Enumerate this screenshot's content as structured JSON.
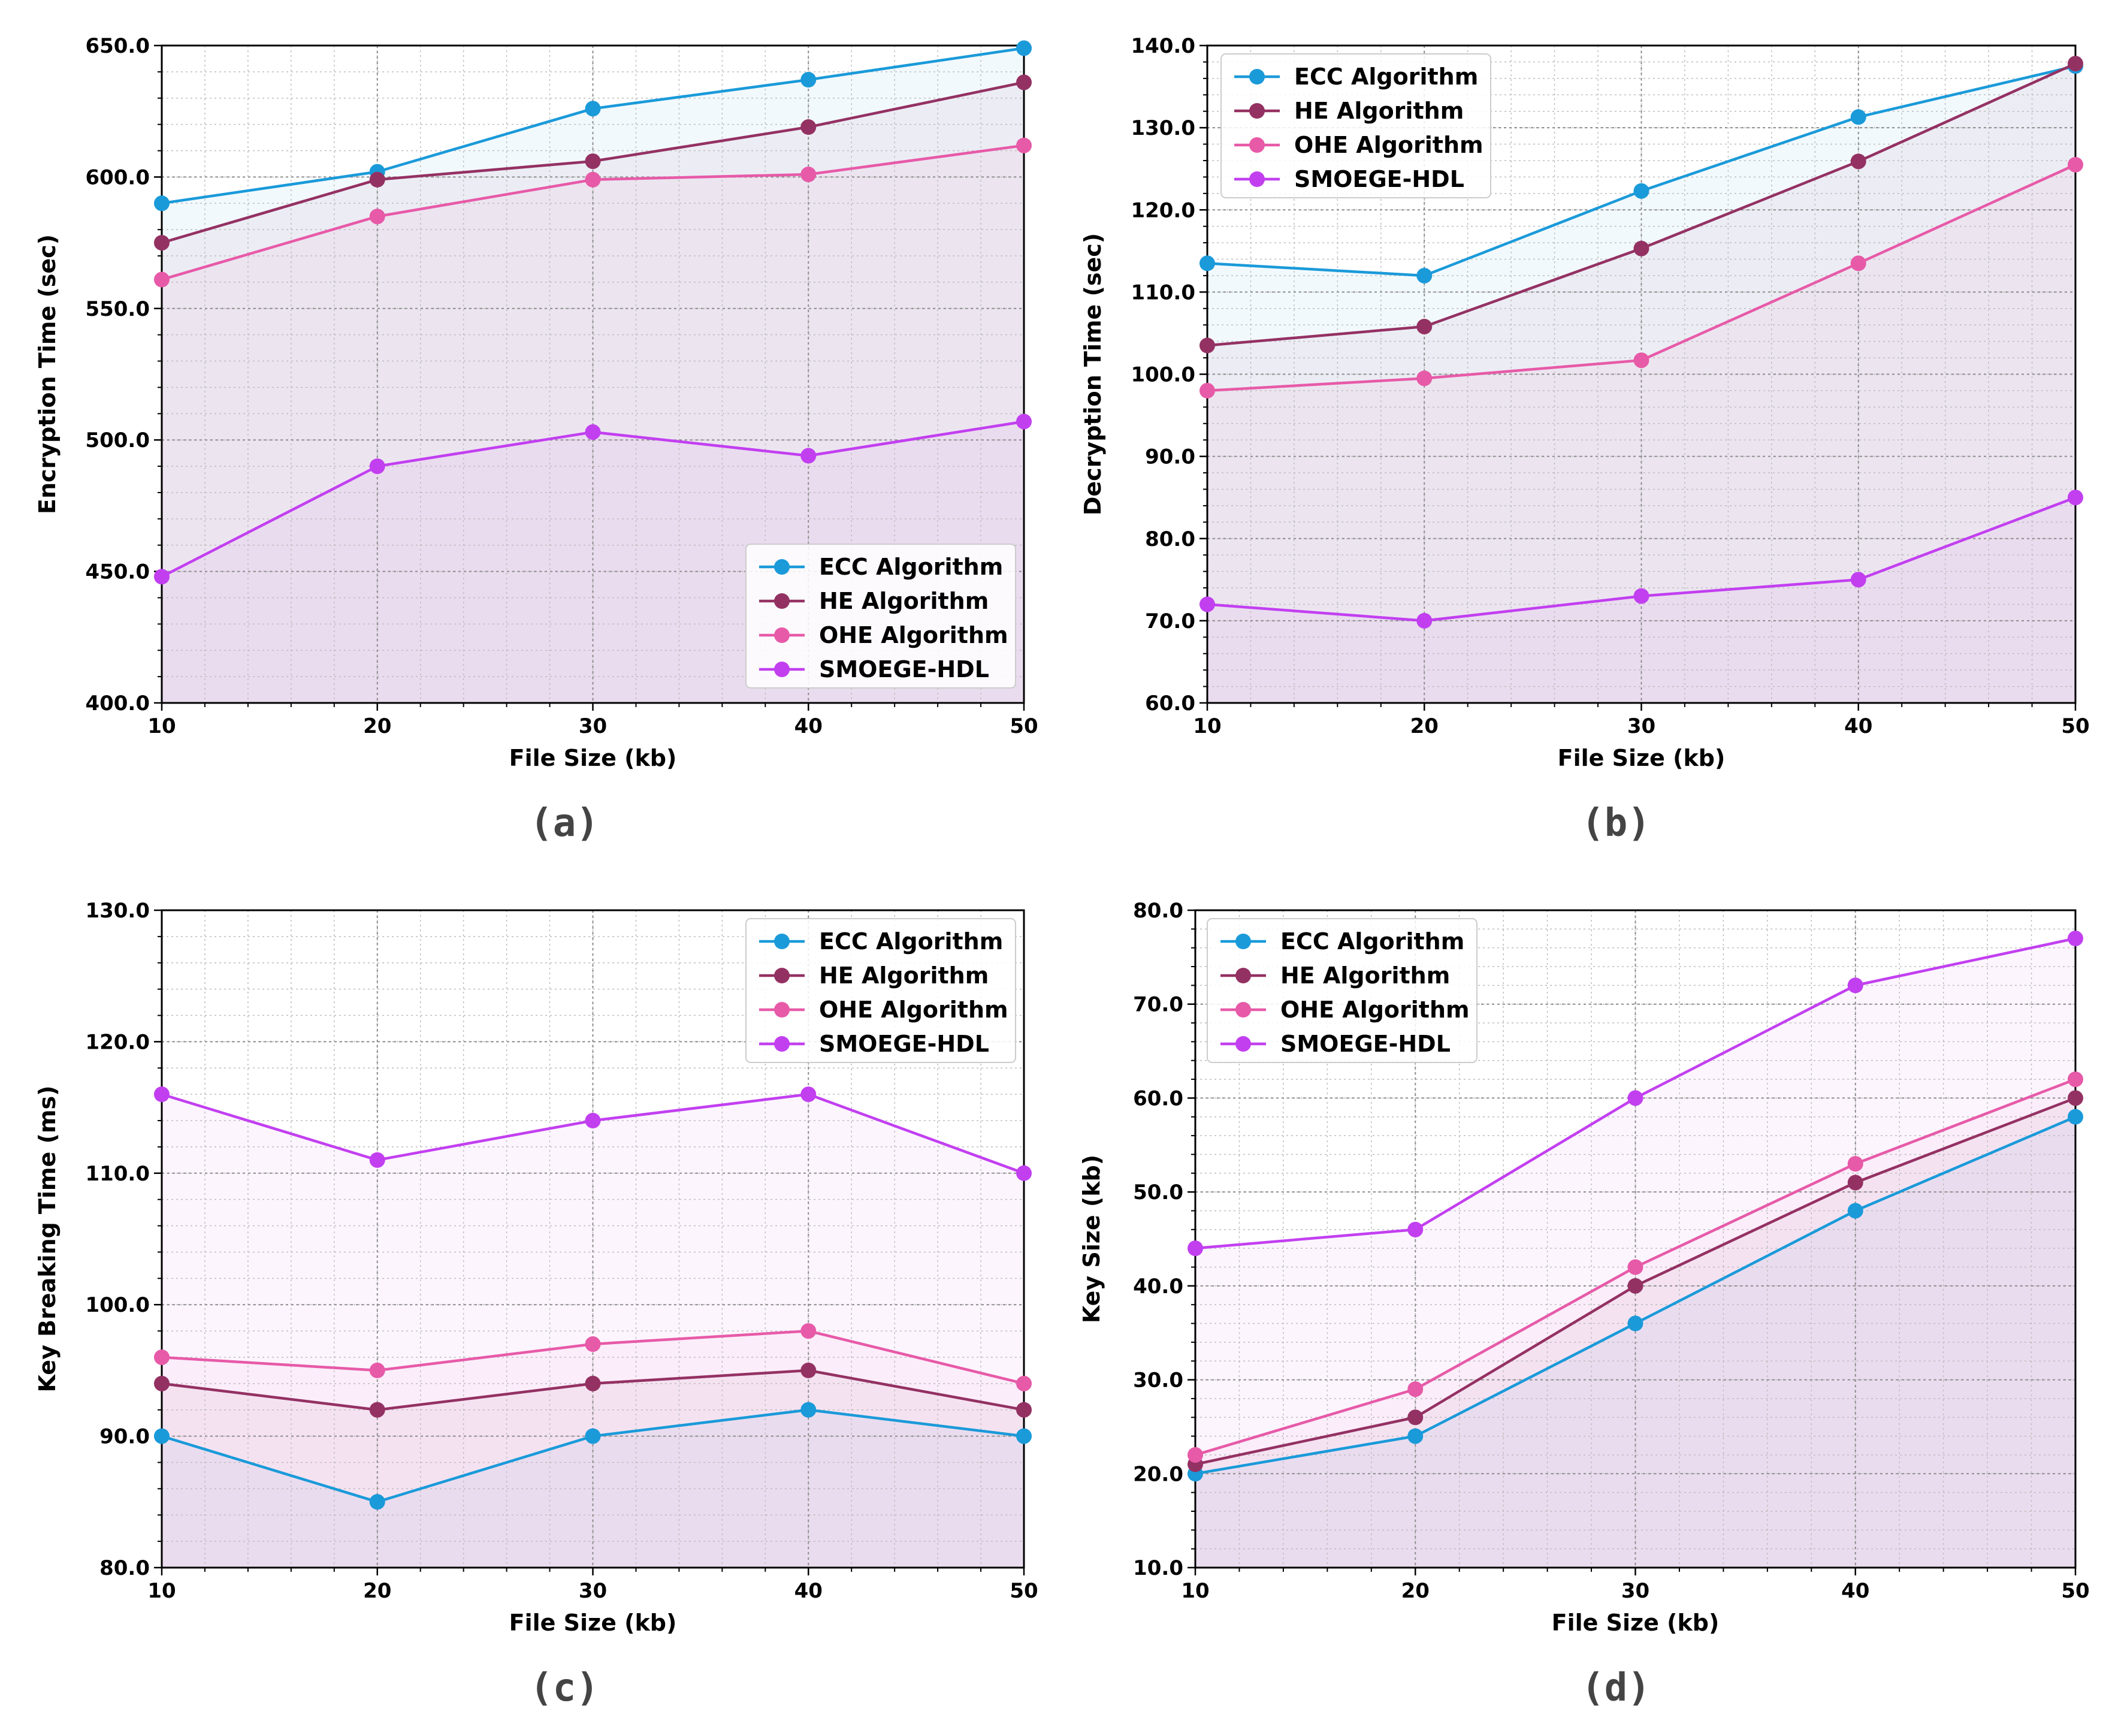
{
  "colors": {
    "ECC Algorithm": "#1a9ad9",
    "HE Algorithm": "#943163",
    "OHE Algorithm": "#e75aa8",
    "SMOEGE-HDL": "#c23ff0"
  },
  "chart_data": [
    {
      "type": "line",
      "panel_label": "(a)",
      "xlabel": "File Size (kb)",
      "ylabel": "Encryption Time (sec)",
      "x": [
        10,
        20,
        30,
        40,
        50
      ],
      "xlim": [
        10,
        50
      ],
      "ylim": [
        400,
        650
      ],
      "xticks": [
        10,
        20,
        30,
        40,
        50
      ],
      "xtick_labels": [
        "10",
        "20",
        "30",
        "40",
        "50"
      ],
      "yticks": [
        400,
        450,
        500,
        550,
        600,
        650
      ],
      "ytick_labels": [
        "400.0",
        "450.0",
        "500.0",
        "550.0",
        "600.0",
        "650.0"
      ],
      "legend_position": "lower-right",
      "grid": true,
      "series": [
        {
          "name": "ECC Algorithm",
          "values": [
            590,
            602,
            626,
            637,
            649
          ]
        },
        {
          "name": "HE Algorithm",
          "values": [
            575,
            599,
            606,
            619,
            636
          ]
        },
        {
          "name": "OHE Algorithm",
          "values": [
            561,
            585,
            599,
            601,
            612
          ]
        },
        {
          "name": "SMOEGE-HDL",
          "values": [
            448,
            490,
            503,
            494,
            507
          ]
        }
      ]
    },
    {
      "type": "line",
      "panel_label": "(b)",
      "xlabel": "File Size (kb)",
      "ylabel": "Decryption Time (sec)",
      "x": [
        10,
        20,
        30,
        40,
        50
      ],
      "xlim": [
        10,
        50
      ],
      "ylim": [
        60,
        140
      ],
      "xticks": [
        10,
        20,
        30,
        40,
        50
      ],
      "xtick_labels": [
        "10",
        "20",
        "30",
        "40",
        "50"
      ],
      "yticks": [
        60,
        70,
        80,
        90,
        100,
        110,
        120,
        130,
        140
      ],
      "ytick_labels": [
        "60.0",
        "70.0",
        "80.0",
        "90.0",
        "100.0",
        "110.0",
        "120.0",
        "130.0",
        "140.0"
      ],
      "legend_position": "upper-left",
      "grid": true,
      "series": [
        {
          "name": "ECC Algorithm",
          "values": [
            113.5,
            112,
            122.3,
            131.3,
            137.5
          ]
        },
        {
          "name": "HE Algorithm",
          "values": [
            103.5,
            105.8,
            115.3,
            125.9,
            137.8
          ]
        },
        {
          "name": "OHE Algorithm",
          "values": [
            98,
            99.5,
            101.7,
            113.5,
            125.5
          ]
        },
        {
          "name": "SMOEGE-HDL",
          "values": [
            72,
            70,
            73,
            75,
            85
          ]
        }
      ]
    },
    {
      "type": "line",
      "panel_label": "(c)",
      "xlabel": "File Size (kb)",
      "ylabel": "Key Breaking Time (ms)",
      "x": [
        10,
        20,
        30,
        40,
        50
      ],
      "xlim": [
        10,
        50
      ],
      "ylim": [
        80,
        130
      ],
      "xticks": [
        10,
        20,
        30,
        40,
        50
      ],
      "xtick_labels": [
        "10",
        "20",
        "30",
        "40",
        "50"
      ],
      "yticks": [
        80,
        90,
        100,
        110,
        120,
        130
      ],
      "ytick_labels": [
        "80.0",
        "90.0",
        "100.0",
        "110.0",
        "120.0",
        "130.0"
      ],
      "legend_position": "upper-right",
      "grid": true,
      "series": [
        {
          "name": "ECC Algorithm",
          "values": [
            90,
            85,
            90,
            92,
            90
          ]
        },
        {
          "name": "HE Algorithm",
          "values": [
            94,
            92,
            94,
            95,
            92
          ]
        },
        {
          "name": "OHE Algorithm",
          "values": [
            96,
            95,
            97,
            98,
            94
          ]
        },
        {
          "name": "SMOEGE-HDL",
          "values": [
            116,
            111,
            114,
            116,
            110
          ]
        }
      ]
    },
    {
      "type": "line",
      "panel_label": "(d)",
      "xlabel": "File Size (kb)",
      "ylabel": "Key Size (kb)",
      "x": [
        10,
        20,
        30,
        40,
        50
      ],
      "xlim": [
        10,
        50
      ],
      "ylim": [
        10,
        80
      ],
      "xticks": [
        10,
        20,
        30,
        40,
        50
      ],
      "xtick_labels": [
        "10",
        "20",
        "30",
        "40",
        "50"
      ],
      "yticks": [
        10,
        20,
        30,
        40,
        50,
        60,
        70,
        80
      ],
      "ytick_labels": [
        "10.0",
        "20.0",
        "30.0",
        "40.0",
        "50.0",
        "60.0",
        "70.0",
        "80.0"
      ],
      "legend_position": "upper-left",
      "grid": true,
      "series": [
        {
          "name": "ECC Algorithm",
          "values": [
            20,
            24,
            36,
            48,
            58
          ]
        },
        {
          "name": "HE Algorithm",
          "values": [
            21,
            26,
            40,
            51,
            60
          ]
        },
        {
          "name": "OHE Algorithm",
          "values": [
            22,
            29,
            42,
            53,
            62
          ]
        },
        {
          "name": "SMOEGE-HDL",
          "values": [
            44,
            46,
            60,
            72,
            77
          ]
        }
      ]
    }
  ]
}
